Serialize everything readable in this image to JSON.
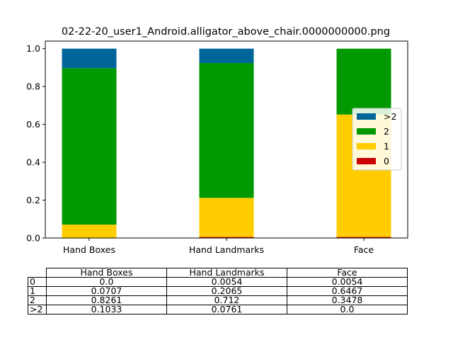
{
  "chart_data": {
    "type": "bar",
    "stacked": true,
    "title": "02-22-20_user1_Android.alligator_above_chair.0000000000.png",
    "categories": [
      "Hand Boxes",
      "Hand Landmarks",
      "Face"
    ],
    "series": [
      {
        "name": "0",
        "color": "#cc0000",
        "values": [
          0.0,
          0.0054,
          0.0054
        ]
      },
      {
        "name": "1",
        "color": "#ffcc00",
        "values": [
          0.0707,
          0.2065,
          0.6467
        ]
      },
      {
        "name": "2",
        "color": "#009900",
        "values": [
          0.8261,
          0.712,
          0.3478
        ]
      },
      {
        "name": ">2",
        "color": "#006699",
        "values": [
          0.1033,
          0.0761,
          0.0
        ]
      }
    ],
    "ylim": [
      0,
      1.04
    ],
    "yticks": [
      "0.0",
      "0.2",
      "0.4",
      "0.6",
      "0.8",
      "1.0"
    ],
    "legend": {
      "placement": "center-right",
      "order": [
        ">2",
        "2",
        "1",
        "0"
      ]
    },
    "grid": false
  },
  "table": {
    "columns": [
      "Hand Boxes",
      "Hand Landmarks",
      "Face"
    ],
    "rows": [
      {
        "label": "0",
        "cells": [
          "0.0",
          "0.0054",
          "0.0054"
        ]
      },
      {
        "label": "1",
        "cells": [
          "0.0707",
          "0.2065",
          "0.6467"
        ]
      },
      {
        "label": "2",
        "cells": [
          "0.8261",
          "0.712",
          "0.3478"
        ]
      },
      {
        "label": ">2",
        "cells": [
          "0.1033",
          "0.0761",
          "0.0"
        ]
      }
    ]
  }
}
